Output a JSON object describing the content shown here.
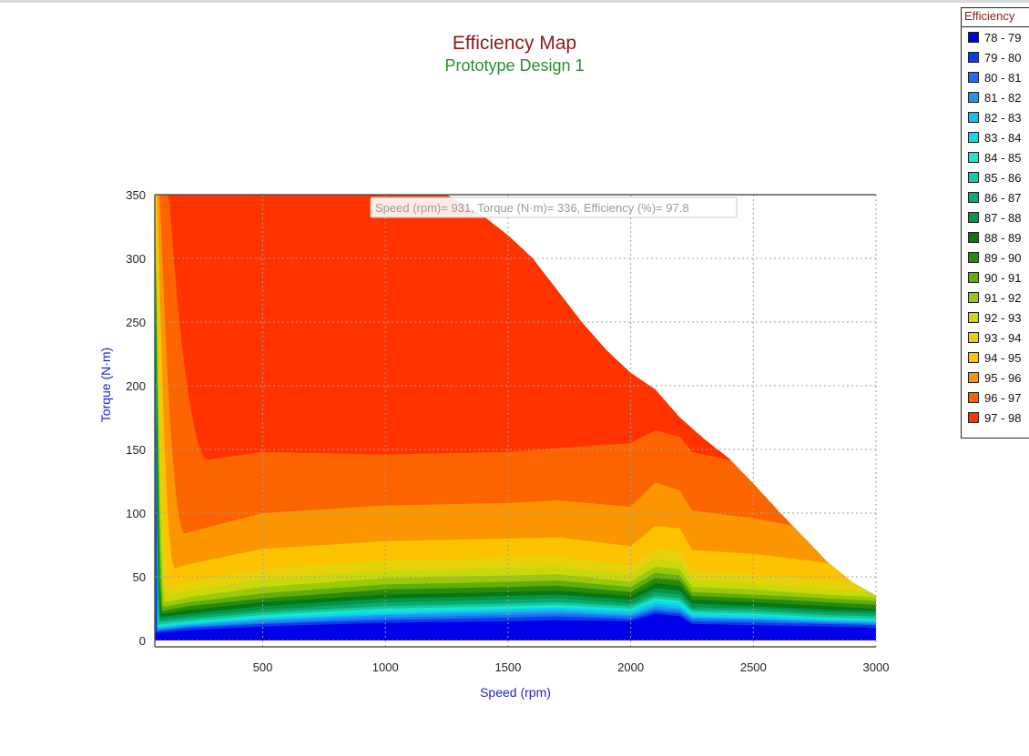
{
  "chart_data": {
    "type": "heatmap",
    "title": "Efficiency Map",
    "subtitle": "Prototype Design 1",
    "xlabel": "Speed (rpm)",
    "ylabel": "Torque (N·m)",
    "xlim": [
      60,
      3000
    ],
    "ylim": [
      -5,
      350
    ],
    "x_ticks": [
      500,
      1000,
      1500,
      2000,
      2500,
      3000
    ],
    "y_ticks": [
      0,
      50,
      100,
      150,
      200,
      250,
      300,
      350
    ],
    "grid": true,
    "legend": {
      "title": "Efficiency",
      "position": "right",
      "entries": [
        "78 - 79",
        "79 - 80",
        "80 - 81",
        "81 - 82",
        "82 - 83",
        "83 - 84",
        "84 - 85",
        "85 - 86",
        "86 - 87",
        "87 - 88",
        "88 - 89",
        "89 - 90",
        "90 - 91",
        "91 - 92",
        "92 - 93",
        "93 - 94",
        "94 - 95",
        "95 - 96",
        "96 - 97",
        "97 - 98"
      ],
      "colors": [
        "#0000e8",
        "#0a3cf0",
        "#1e6ef5",
        "#1e96f0",
        "#14bef0",
        "#0adce6",
        "#19e6cd",
        "#14c8a0",
        "#0aaa6e",
        "#089446",
        "#067818",
        "#2a8a0a",
        "#5fae0a",
        "#9ac80a",
        "#c8d80a",
        "#e6d20a",
        "#fbc300",
        "#fb9600",
        "#fc6400",
        "#ff3200"
      ]
    },
    "envelope": {
      "x": [
        60,
        1250,
        1400,
        1500,
        1600,
        1700,
        1800,
        1900,
        2000,
        2100,
        2200,
        2300,
        2400,
        2500,
        2600,
        2700,
        2800,
        2900,
        3000
      ],
      "torque_max": [
        350,
        350,
        333,
        318,
        300,
        275,
        250,
        228,
        210,
        197,
        175,
        158,
        143,
        123,
        102,
        82,
        62,
        46,
        35
      ]
    },
    "contours": [
      {
        "range": "78 - 79",
        "x": [
          60,
          200,
          500,
          1000,
          1500,
          1700,
          2000,
          2100,
          2200,
          2250,
          2500,
          2800,
          3000
        ],
        "torque": [
          6,
          8,
          11,
          14,
          15,
          16,
          15,
          21,
          19,
          13,
          12,
          11,
          10
        ]
      },
      {
        "range": "79 - 80",
        "x": [
          60,
          200,
          500,
          1000,
          1500,
          1700,
          2000,
          2100,
          2200,
          2250,
          2500,
          2800,
          3000
        ],
        "torque": [
          7,
          10,
          13,
          16,
          18,
          19,
          17,
          23,
          21,
          15,
          14,
          13,
          12
        ]
      },
      {
        "range": "80 - 81",
        "x": [
          60,
          200,
          500,
          1000,
          1500,
          1700,
          2000,
          2100,
          2200,
          2250,
          2500,
          2800,
          3000
        ],
        "torque": [
          8,
          11,
          14,
          18,
          20,
          21,
          19,
          25,
          23,
          17,
          16,
          14,
          13
        ]
      },
      {
        "range": "81 - 82",
        "x": [
          60,
          200,
          500,
          1000,
          1500,
          1700,
          2000,
          2100,
          2200,
          2250,
          2500,
          2800,
          3000
        ],
        "torque": [
          9,
          12,
          16,
          20,
          22,
          23,
          20,
          27,
          25,
          18,
          17,
          15,
          14
        ]
      },
      {
        "range": "82 - 83",
        "x": [
          60,
          200,
          500,
          1000,
          1500,
          1700,
          2000,
          2100,
          2200,
          2250,
          2500,
          2800,
          3000
        ],
        "torque": [
          10,
          13,
          17,
          21,
          24,
          25,
          22,
          29,
          27,
          19,
          18,
          16,
          15
        ]
      },
      {
        "range": "83 - 84",
        "x": [
          60,
          200,
          500,
          1000,
          1500,
          1700,
          2000,
          2100,
          2200,
          2250,
          2500,
          2800,
          3000
        ],
        "torque": [
          11,
          14,
          18,
          23,
          25,
          26,
          24,
          31,
          29,
          21,
          20,
          17,
          16
        ]
      },
      {
        "range": "84 - 85",
        "x": [
          60,
          200,
          500,
          1000,
          1500,
          1700,
          2000,
          2100,
          2200,
          2250,
          2500,
          2800,
          3000
        ],
        "torque": [
          12,
          15,
          20,
          25,
          27,
          28,
          25,
          33,
          31,
          22,
          21,
          18,
          17
        ]
      },
      {
        "range": "85 - 86",
        "x": [
          60,
          200,
          500,
          1000,
          1500,
          1700,
          2000,
          2100,
          2200,
          2250,
          2500,
          2800,
          3000
        ],
        "torque": [
          14,
          17,
          22,
          27,
          29,
          30,
          27,
          35,
          33,
          24,
          23,
          20,
          19
        ]
      },
      {
        "range": "86 - 87",
        "x": [
          60,
          200,
          500,
          1000,
          1500,
          1700,
          2000,
          2100,
          2200,
          2250,
          2500,
          2800,
          3000
        ],
        "torque": [
          16,
          19,
          24,
          30,
          32,
          33,
          29,
          38,
          36,
          26,
          25,
          22,
          21
        ]
      },
      {
        "range": "87 - 88",
        "x": [
          60,
          200,
          500,
          1000,
          1500,
          1700,
          2000,
          2100,
          2200,
          2250,
          2500,
          2800,
          3000
        ],
        "torque": [
          18,
          21,
          27,
          33,
          35,
          36,
          32,
          41,
          39,
          29,
          27,
          24,
          23
        ]
      },
      {
        "range": "88 - 89",
        "x": [
          60,
          200,
          500,
          1000,
          1500,
          1700,
          2000,
          2100,
          2200,
          2250,
          2500,
          2800,
          3000
        ],
        "torque": [
          20,
          24,
          30,
          36,
          38,
          39,
          35,
          45,
          43,
          32,
          30,
          27,
          25
        ]
      },
      {
        "range": "89 - 90",
        "x": [
          60,
          200,
          500,
          1000,
          1500,
          1700,
          2000,
          2100,
          2200,
          2250,
          2500,
          2800,
          3000
        ],
        "torque": [
          22,
          27,
          33,
          40,
          42,
          43,
          38,
          49,
          47,
          35,
          33,
          30,
          28
        ]
      },
      {
        "range": "90 - 91",
        "x": [
          60,
          200,
          500,
          1000,
          1500,
          1700,
          2000,
          2100,
          2200,
          2250,
          2500,
          2800,
          3000
        ],
        "torque": [
          25,
          30,
          37,
          44,
          46,
          47,
          42,
          53,
          51,
          38,
          36,
          33,
          31
        ]
      },
      {
        "range": "91 - 92",
        "x": [
          60,
          200,
          500,
          1000,
          1500,
          1700,
          2000,
          2100,
          2200,
          2250,
          2500,
          2800,
          3000
        ],
        "torque": [
          28,
          34,
          42,
          49,
          51,
          52,
          46,
          58,
          56,
          42,
          40,
          36,
          34
        ]
      },
      {
        "range": "92 - 93",
        "x": [
          60,
          200,
          500,
          1000,
          1500,
          1700,
          2000,
          2100,
          2200,
          2250,
          2500,
          2800,
          3000
        ],
        "torque": [
          33,
          39,
          48,
          55,
          57,
          58,
          52,
          64,
          62,
          48,
          45,
          40,
          38
        ]
      },
      {
        "range": "93 - 94",
        "x": [
          60,
          200,
          500,
          1000,
          1500,
          1700,
          2000,
          2100,
          2200,
          2250,
          2500,
          2800,
          3000
        ],
        "torque": [
          40,
          46,
          56,
          63,
          65,
          66,
          59,
          72,
          70,
          55,
          52,
          47,
          44
        ]
      },
      {
        "range": "94 - 95",
        "x": [
          60,
          200,
          500,
          1000,
          1500,
          1700,
          2000,
          2100,
          2200,
          2250,
          2500,
          2800,
          3000
        ],
        "torque": [
          52,
          60,
          72,
          78,
          80,
          81,
          74,
          90,
          88,
          71,
          68,
          61,
          57
        ]
      },
      {
        "range": "95 - 96",
        "x": [
          60,
          200,
          500,
          1000,
          1500,
          1700,
          2000,
          2100,
          2200,
          2250,
          2500,
          2800,
          3000
        ],
        "torque": [
          75,
          85,
          100,
          106,
          108,
          110,
          105,
          124,
          118,
          102,
          96,
          85,
          78
        ]
      },
      {
        "range": "96 - 97",
        "x": [
          60,
          200,
          500,
          1000,
          1500,
          1700,
          2000,
          2100,
          2200,
          2250,
          2500,
          2800,
          3000
        ],
        "torque": [
          130,
          140,
          148,
          146,
          148,
          151,
          155,
          165,
          160,
          148,
          138,
          120,
          105
        ]
      }
    ],
    "tooltip": "Speed (rpm)= 931, Torque (N·m)= 336, Efficiency (%)= 97.8"
  }
}
